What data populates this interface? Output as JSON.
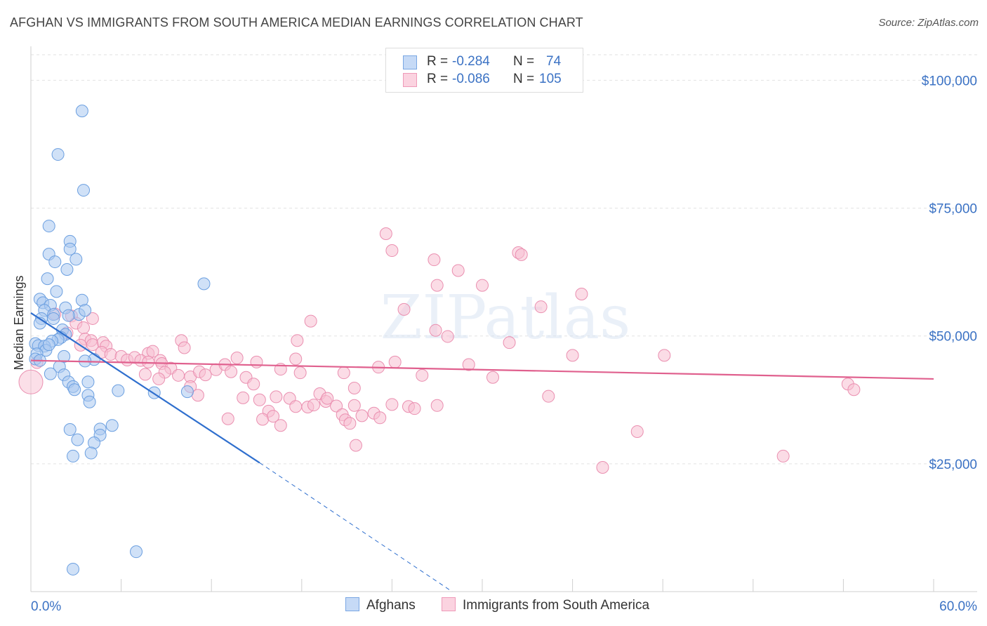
{
  "header": {
    "title": "AFGHAN VS IMMIGRANTS FROM SOUTH AMERICA MEDIAN EARNINGS CORRELATION CHART",
    "source": "Source: ZipAtlas.com"
  },
  "watermark": "ZIPatlas",
  "legend_top": {
    "rows": [
      {
        "r_label": "R =",
        "r_value": "-0.284",
        "n_label": "N =",
        "n_value": "74",
        "color": "#8fb7ea"
      },
      {
        "r_label": "R =",
        "r_value": "-0.086",
        "n_label": "N =",
        "n_value": "105",
        "color": "#f3a6bf"
      }
    ]
  },
  "legend_bottom": {
    "series_a": "Afghans",
    "series_b": "Immigrants from South America"
  },
  "colors": {
    "blue_fill": "#a9c8f0",
    "blue_stroke": "#6b9fe0",
    "blue_line": "#2f6fce",
    "pink_fill": "#f7bfd2",
    "pink_stroke": "#ea8fb0",
    "pink_line": "#e0608e",
    "axis_text": "#3b72c4"
  },
  "chart_data": {
    "type": "scatter",
    "title": "AFGHAN VS IMMIGRANTS FROM SOUTH AMERICA MEDIAN EARNINGS CORRELATION CHART",
    "xlabel": "",
    "ylabel": "Median Earnings",
    "xlim": [
      0,
      60
    ],
    "ylim": [
      0,
      105000
    ],
    "x_tick_labels": [
      "0.0%",
      "60.0%"
    ],
    "y_ticks": [
      25000,
      50000,
      75000,
      100000
    ],
    "y_tick_labels": [
      "$25,000",
      "$50,000",
      "$75,000",
      "$100,000"
    ],
    "grid": true,
    "series": [
      {
        "name": "Afghans",
        "R": -0.284,
        "N": 74,
        "trend": {
          "x0": 0,
          "y0": 54500,
          "x1": 15.2,
          "y1": 25200,
          "dashed_to_x": 28,
          "dashed_to_y": 0
        },
        "points": [
          [
            3.4,
            94000
          ],
          [
            1.8,
            85500
          ],
          [
            3.5,
            78500
          ],
          [
            1.2,
            71500
          ],
          [
            2.6,
            68500
          ],
          [
            2.6,
            67000
          ],
          [
            1.2,
            66000
          ],
          [
            3.0,
            65000
          ],
          [
            1.6,
            64500
          ],
          [
            2.4,
            63000
          ],
          [
            1.1,
            61200
          ],
          [
            11.5,
            60200
          ],
          [
            1.7,
            58700
          ],
          [
            0.6,
            57200
          ],
          [
            3.4,
            57000
          ],
          [
            0.8,
            56500
          ],
          [
            1.3,
            56000
          ],
          [
            3.2,
            54200
          ],
          [
            0.9,
            55000
          ],
          [
            2.3,
            55500
          ],
          [
            1.5,
            54200
          ],
          [
            3.6,
            55000
          ],
          [
            0.7,
            53400
          ],
          [
            1.5,
            53400
          ],
          [
            2.5,
            54000
          ],
          [
            0.6,
            52500
          ],
          [
            2.1,
            51200
          ],
          [
            2.3,
            50300
          ],
          [
            2.0,
            49700
          ],
          [
            1.8,
            49300
          ],
          [
            1.4,
            49000
          ],
          [
            0.3,
            48500
          ],
          [
            0.5,
            48100
          ],
          [
            0.9,
            48000
          ],
          [
            1.0,
            47200
          ],
          [
            1.2,
            48300
          ],
          [
            0.4,
            46500
          ],
          [
            0.3,
            45500
          ],
          [
            0.6,
            45200
          ],
          [
            2.2,
            46000
          ],
          [
            4.2,
            45400
          ],
          [
            3.6,
            45100
          ],
          [
            1.9,
            44000
          ],
          [
            1.3,
            42600
          ],
          [
            2.2,
            42400
          ],
          [
            3.8,
            41000
          ],
          [
            2.5,
            41000
          ],
          [
            2.8,
            40100
          ],
          [
            2.9,
            39500
          ],
          [
            5.8,
            39300
          ],
          [
            8.2,
            38900
          ],
          [
            10.4,
            39100
          ],
          [
            3.8,
            38400
          ],
          [
            3.9,
            37100
          ],
          [
            5.4,
            32500
          ],
          [
            2.6,
            31700
          ],
          [
            4.6,
            31800
          ],
          [
            4.6,
            30600
          ],
          [
            3.1,
            29700
          ],
          [
            4.2,
            29100
          ],
          [
            4.0,
            27100
          ],
          [
            2.8,
            26500
          ],
          [
            7.0,
            7800
          ],
          [
            2.8,
            4400
          ]
        ]
      },
      {
        "name": "Immigrants from South America",
        "R": -0.086,
        "N": 105,
        "trend": {
          "x0": 0,
          "y0": 45200,
          "x1": 60,
          "y1": 41600
        },
        "points": [
          [
            23.6,
            70000
          ],
          [
            24.0,
            66700
          ],
          [
            32.4,
            66300
          ],
          [
            32.6,
            65900
          ],
          [
            26.8,
            64900
          ],
          [
            28.4,
            62800
          ],
          [
            27.0,
            59900
          ],
          [
            30.0,
            59900
          ],
          [
            36.6,
            58200
          ],
          [
            33.9,
            55700
          ],
          [
            24.8,
            55200
          ],
          [
            26.9,
            51100
          ],
          [
            18.6,
            52900
          ],
          [
            27.7,
            49900
          ],
          [
            31.8,
            48700
          ],
          [
            17.7,
            49100
          ],
          [
            10.0,
            49100
          ],
          [
            10.2,
            47700
          ],
          [
            7.8,
            46600
          ],
          [
            8.1,
            47000
          ],
          [
            4.1,
            53400
          ],
          [
            2.7,
            53900
          ],
          [
            1.6,
            54300
          ],
          [
            3.0,
            52500
          ],
          [
            3.5,
            51600
          ],
          [
            2.4,
            50600
          ],
          [
            3.6,
            49400
          ],
          [
            4.0,
            49100
          ],
          [
            4.1,
            48300
          ],
          [
            4.8,
            48700
          ],
          [
            5.0,
            48000
          ],
          [
            3.3,
            48200
          ],
          [
            4.7,
            46800
          ],
          [
            5.3,
            46400
          ],
          [
            6.0,
            46000
          ],
          [
            6.4,
            45300
          ],
          [
            6.9,
            45800
          ],
          [
            7.3,
            45200
          ],
          [
            7.8,
            44900
          ],
          [
            8.6,
            45200
          ],
          [
            8.7,
            44600
          ],
          [
            9.3,
            43700
          ],
          [
            8.9,
            42900
          ],
          [
            7.6,
            42500
          ],
          [
            8.5,
            41600
          ],
          [
            9.8,
            42300
          ],
          [
            10.6,
            42000
          ],
          [
            11.2,
            43000
          ],
          [
            11.6,
            42400
          ],
          [
            12.3,
            43400
          ],
          [
            12.9,
            44400
          ],
          [
            13.3,
            43000
          ],
          [
            13.7,
            45700
          ],
          [
            14.3,
            41900
          ],
          [
            14.8,
            40600
          ],
          [
            15.0,
            44900
          ],
          [
            17.6,
            45500
          ],
          [
            16.6,
            43500
          ],
          [
            17.9,
            42800
          ],
          [
            19.2,
            38700
          ],
          [
            19.6,
            37200
          ],
          [
            20.8,
            42800
          ],
          [
            21.5,
            39800
          ],
          [
            23.1,
            43900
          ],
          [
            24.2,
            44900
          ],
          [
            26.0,
            42300
          ],
          [
            29.1,
            44400
          ],
          [
            30.7,
            41900
          ],
          [
            34.4,
            38200
          ],
          [
            36.0,
            46200
          ],
          [
            42.1,
            46200
          ],
          [
            54.3,
            40600
          ],
          [
            54.7,
            39500
          ],
          [
            10.6,
            40100
          ],
          [
            11.1,
            38400
          ],
          [
            13.1,
            33800
          ],
          [
            14.1,
            37900
          ],
          [
            15.2,
            37500
          ],
          [
            15.8,
            35300
          ],
          [
            15.4,
            33700
          ],
          [
            16.1,
            34300
          ],
          [
            16.3,
            38100
          ],
          [
            16.6,
            32500
          ],
          [
            17.2,
            37800
          ],
          [
            17.6,
            36200
          ],
          [
            18.4,
            36100
          ],
          [
            18.8,
            36500
          ],
          [
            19.7,
            37800
          ],
          [
            20.3,
            36300
          ],
          [
            20.7,
            34600
          ],
          [
            21.5,
            36400
          ],
          [
            22.0,
            34400
          ],
          [
            22.8,
            34900
          ],
          [
            23.2,
            34000
          ],
          [
            24.0,
            36600
          ],
          [
            25.1,
            36200
          ],
          [
            25.5,
            35800
          ],
          [
            27.0,
            36400
          ],
          [
            20.9,
            33600
          ],
          [
            21.2,
            32900
          ],
          [
            21.6,
            28600
          ],
          [
            38.0,
            24300
          ],
          [
            40.3,
            31300
          ],
          [
            50.0,
            26500
          ],
          [
            0.4,
            44800
          ]
        ]
      }
    ]
  }
}
